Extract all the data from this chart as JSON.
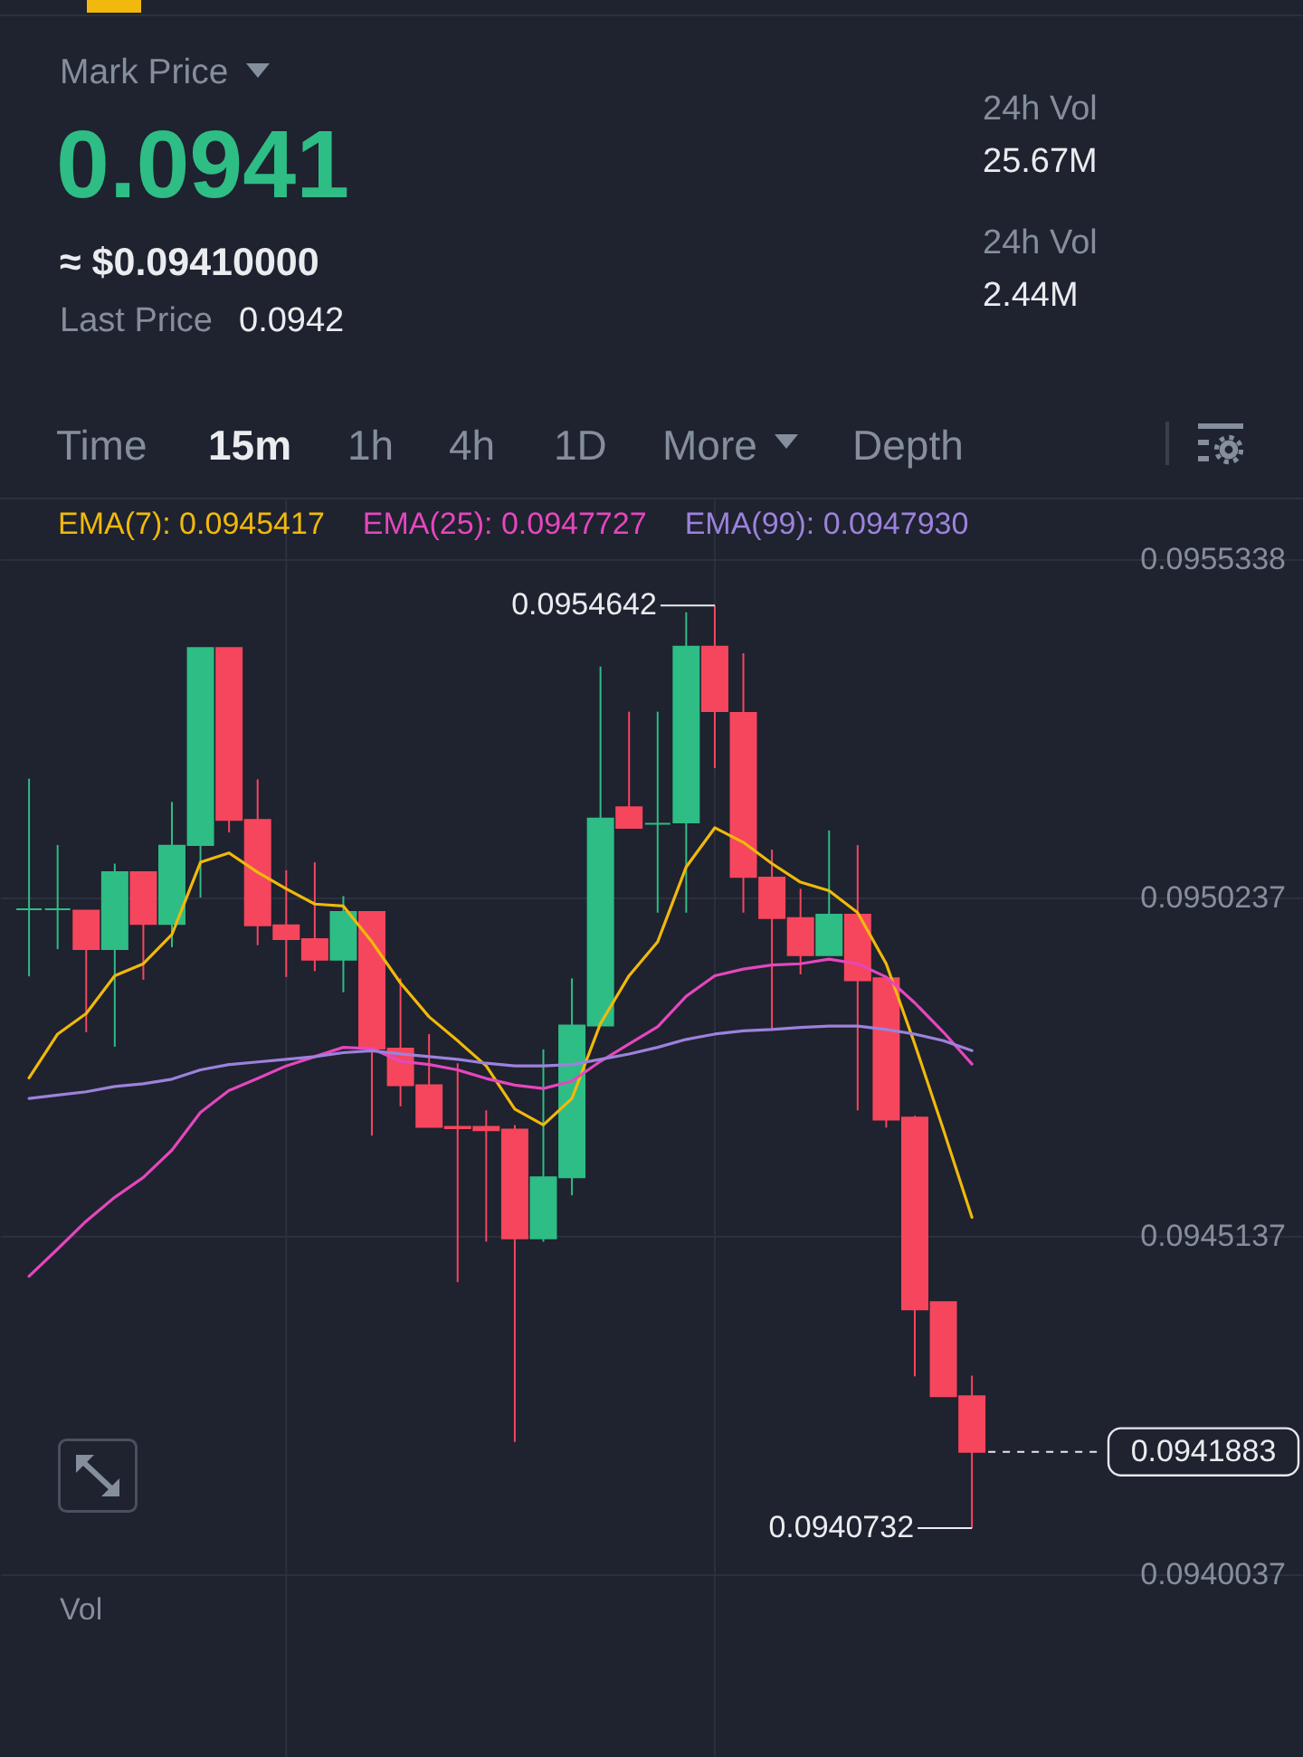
{
  "chart_data": [
    {
      "type": "other",
      "annotations": [
        "Mark Price",
        "0.0941",
        "≈ $0.09410000",
        "Last Price",
        "0.0942",
        "24h Vol",
        "25.67M",
        "24h Vol",
        "2.44M",
        "Time",
        "15m",
        "1h",
        "4h",
        "1D",
        "More",
        "Depth"
      ]
    },
    {
      "type": "candlestick",
      "categories": [
        null,
        null,
        null,
        null,
        null,
        null,
        null,
        null,
        null,
        null,
        null,
        null,
        null,
        null,
        null,
        null,
        null,
        null,
        null,
        null,
        null,
        null,
        null,
        null,
        null,
        null,
        null,
        null,
        null,
        null,
        null,
        null,
        null,
        null
      ],
      "ohlc": [
        [
          0.095006,
          0.095203,
          0.094905,
          0.095006
        ],
        [
          0.095006,
          0.095103,
          0.094946,
          0.095006
        ],
        [
          0.095004,
          0.095004,
          0.094821,
          0.094946
        ],
        [
          0.094946,
          0.095075,
          0.094799,
          0.095062
        ],
        [
          0.095062,
          0.095062,
          0.0949,
          0.094984
        ],
        [
          0.094984,
          0.095168,
          0.094949,
          0.095102
        ],
        [
          0.095103,
          0.0954,
          0.095024,
          0.0954
        ],
        [
          0.0954,
          0.0954,
          0.095122,
          0.095141
        ],
        [
          0.095141,
          0.095202,
          0.094952,
          0.094982
        ],
        [
          0.094982,
          0.095065,
          0.094904,
          0.094961
        ],
        [
          0.094961,
          0.095077,
          0.094913,
          0.09493
        ],
        [
          0.09493,
          0.095026,
          0.094881,
          0.095002
        ],
        [
          0.095002,
          0.095002,
          0.094665,
          0.094796
        ],
        [
          0.094796,
          0.094902,
          0.094709,
          0.094741
        ],
        [
          0.094741,
          0.094818,
          0.094678,
          0.094678
        ],
        [
          0.094678,
          0.094774,
          0.094444,
          0.094676
        ],
        [
          0.094678,
          0.094703,
          0.094505,
          0.094673
        ],
        [
          0.094674,
          0.094681,
          0.094203,
          0.09451
        ],
        [
          0.09451,
          0.094795,
          0.094505,
          0.094602
        ],
        [
          0.094602,
          0.094902,
          0.094575,
          0.094831
        ],
        [
          0.094831,
          0.095372,
          0.094831,
          0.095143
        ],
        [
          0.09516,
          0.095304,
          0.095129,
          0.095129
        ],
        [
          0.095135,
          0.095304,
          0.095001,
          0.095135
        ],
        [
          0.095137,
          0.095454,
          0.095001,
          0.095402
        ],
        [
          0.095402,
          0.0954642,
          0.095219,
          0.095305
        ],
        [
          0.095302,
          0.095392,
          0.095001,
          0.095055
        ],
        [
          0.095054,
          0.095096,
          0.094826,
          0.094993
        ],
        [
          0.094993,
          0.095037,
          0.094908,
          0.094937
        ],
        [
          0.094937,
          0.095125,
          0.094937,
          0.094998
        ],
        [
          0.094998,
          0.095103,
          0.094703,
          0.094899
        ],
        [
          0.094902,
          0.094902,
          0.094677,
          0.094689
        ],
        [
          0.094692,
          0.094695,
          0.094302,
          0.094403
        ],
        [
          0.094414,
          0.094414,
          0.094272,
          0.094272
        ],
        [
          0.094272,
          0.094303,
          0.0940732,
          0.0941883
        ]
      ],
      "colors": [
        "#2ebd85",
        "#2ebd85",
        "#f6465d",
        "#2ebd85",
        "#f6465d",
        "#2ebd85",
        "#2ebd85",
        "#f6465d",
        "#f6465d",
        "#f6465d",
        "#f6465d",
        "#2ebd85",
        "#f6465d",
        "#f6465d",
        "#f6465d",
        "#f6465d",
        "#f6465d",
        "#f6465d",
        "#2ebd85",
        "#2ebd85",
        "#2ebd85",
        "#f6465d",
        "#2ebd85",
        "#2ebd85",
        "#f6465d",
        "#f6465d",
        "#f6465d",
        "#f6465d",
        "#2ebd85",
        "#f6465d",
        "#f6465d",
        "#f6465d",
        "#f6465d",
        "#f6465d"
      ],
      "series": [
        {
          "type": "line",
          "name": "EMA(7): 0.0945417",
          "color": "#f0b90b",
          "values": [
            0.094752,
            0.094818,
            0.094849,
            0.094906,
            0.094924,
            0.094968,
            0.095077,
            0.095091,
            0.095062,
            0.095037,
            0.095014,
            0.095011,
            0.094957,
            0.094895,
            0.094844,
            0.094808,
            0.09477,
            0.094705,
            0.094681,
            0.094721,
            0.094834,
            0.094906,
            0.094957,
            0.09507,
            0.095129,
            0.095107,
            0.095075,
            0.095047,
            0.095034,
            0.095001,
            0.094924,
            0.094803,
            0.094674,
            0.0945417
          ]
        },
        {
          "type": "line",
          "name": "EMA(25): 0.0947727",
          "color": "#e447bd",
          "values": [
            0.094453,
            0.094494,
            0.094536,
            0.094572,
            0.094602,
            0.094643,
            0.0947,
            0.094733,
            0.094751,
            0.09477,
            0.094784,
            0.094798,
            0.094796,
            0.094777,
            0.094772,
            0.094764,
            0.094751,
            0.094741,
            0.094736,
            0.094747,
            0.094777,
            0.094803,
            0.094829,
            0.094875,
            0.094906,
            0.094916,
            0.094922,
            0.094924,
            0.094931,
            0.094924,
            0.094904,
            0.094865,
            0.094821,
            0.0947727
          ]
        },
        {
          "type": "line",
          "name": "EMA(99): 0.0947930",
          "color": "#9c82dc",
          "values": [
            0.094721,
            0.094726,
            0.094731,
            0.094739,
            0.094743,
            0.09475,
            0.094764,
            0.094772,
            0.094776,
            0.09478,
            0.094784,
            0.09479,
            0.094793,
            0.094788,
            0.094784,
            0.09478,
            0.094774,
            0.09477,
            0.09477,
            0.094772,
            0.09478,
            0.094788,
            0.094798,
            0.09481,
            0.094818,
            0.094823,
            0.094825,
            0.094828,
            0.09483,
            0.09483,
            0.094825,
            0.094818,
            0.094808,
            0.094793
          ]
        }
      ],
      "ylim": [
        0.0940037,
        0.095624
      ],
      "yticks": [
        0.0955338,
        0.0950237,
        0.0945137,
        0.0940037
      ],
      "grid": true,
      "legend": "top",
      "tick_labels": "y",
      "ref_lines": [
        {
          "axis": "y",
          "value": 0.0941883,
          "label": "0.0941883",
          "color": "#e6e8ec",
          "line_style": "dashed"
        }
      ],
      "annotations": [
        "0.0954642",
        "0.0940732",
        "Vol"
      ]
    }
  ]
}
